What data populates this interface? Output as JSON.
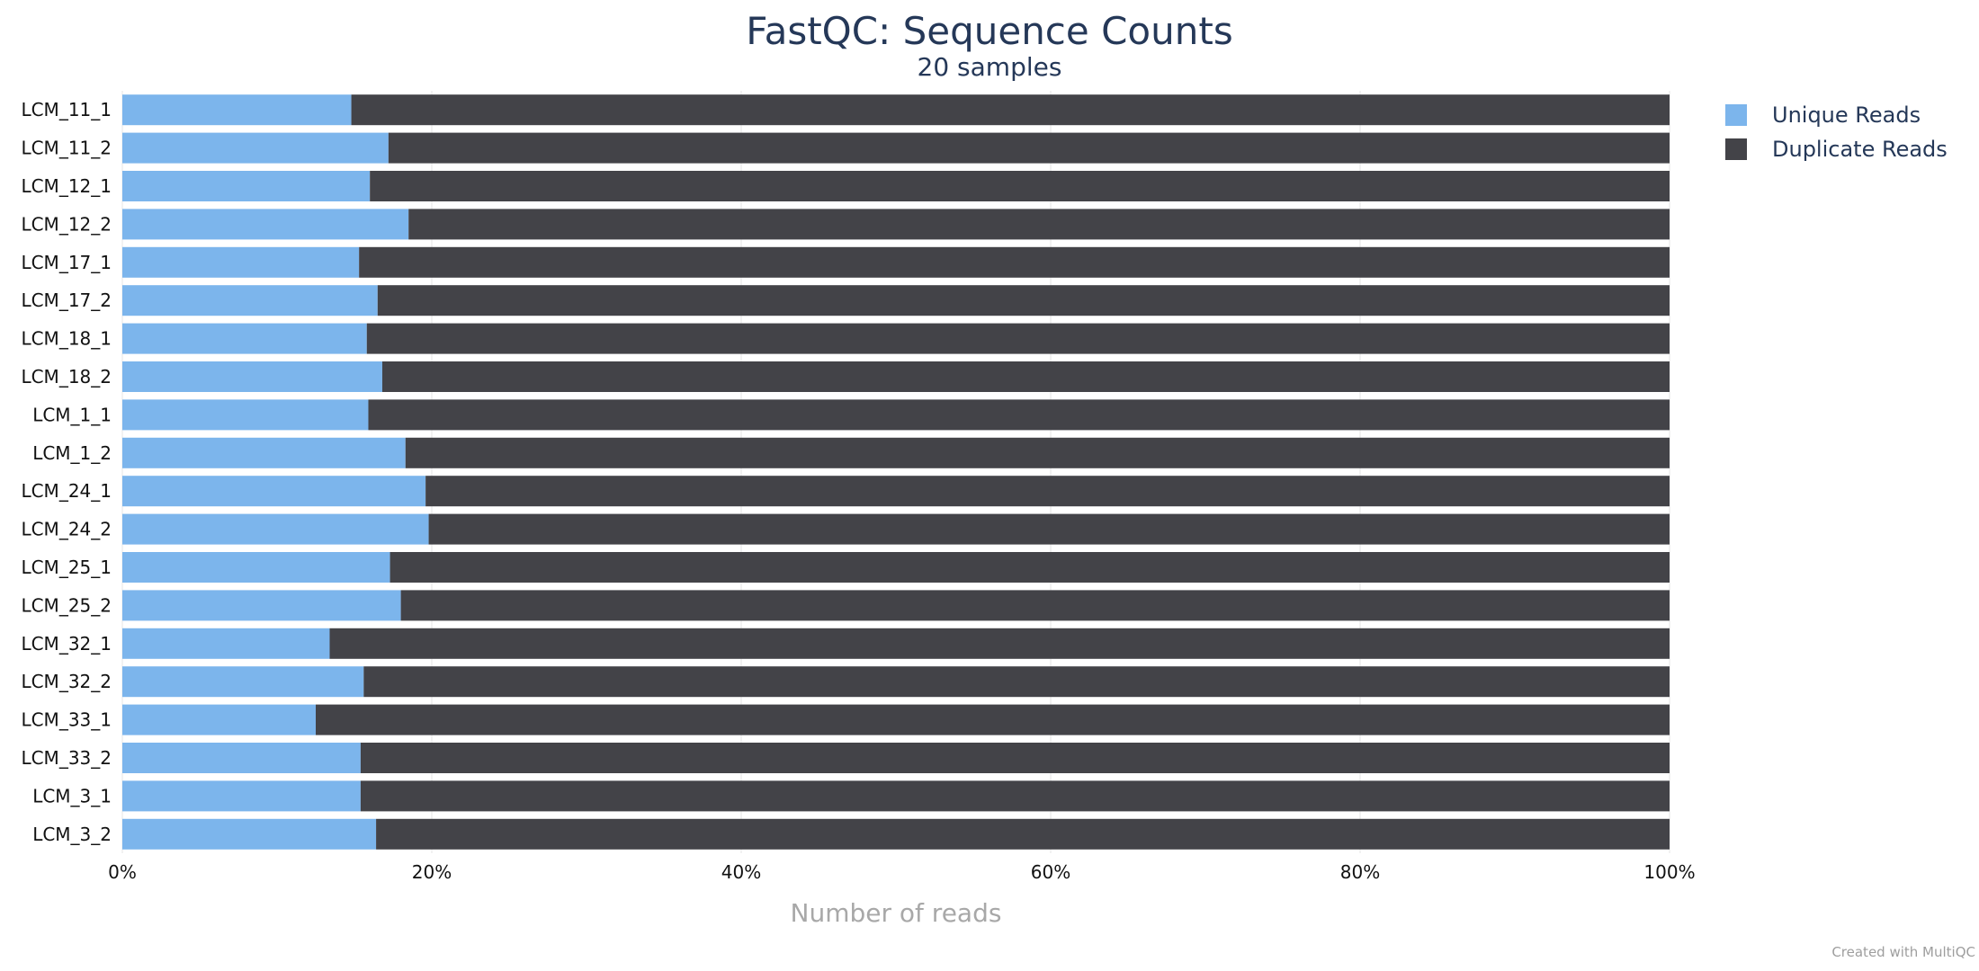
{
  "chart_data": {
    "type": "bar",
    "orientation": "horizontal",
    "stacked": true,
    "title": "FastQC: Sequence Counts",
    "subtitle": "20 samples",
    "xlabel": "Number of reads",
    "ylabel": "",
    "xlim": [
      0,
      100
    ],
    "x_ticks": [
      "0%",
      "20%",
      "40%",
      "60%",
      "80%",
      "100%"
    ],
    "x_tick_values": [
      0,
      20,
      40,
      60,
      80,
      100
    ],
    "grid": true,
    "legend_position": "top-right",
    "categories": [
      "LCM_11_1",
      "LCM_11_2",
      "LCM_12_1",
      "LCM_12_2",
      "LCM_17_1",
      "LCM_17_2",
      "LCM_18_1",
      "LCM_18_2",
      "LCM_1_1",
      "LCM_1_2",
      "LCM_24_1",
      "LCM_24_2",
      "LCM_25_1",
      "LCM_25_2",
      "LCM_32_1",
      "LCM_32_2",
      "LCM_33_1",
      "LCM_33_2",
      "LCM_3_1",
      "LCM_3_2"
    ],
    "series": [
      {
        "name": "Unique Reads",
        "color": "#7cb5ec",
        "values": [
          14.8,
          17.2,
          16.0,
          18.5,
          15.3,
          16.5,
          15.8,
          16.8,
          15.9,
          18.3,
          19.6,
          19.8,
          17.3,
          18.0,
          13.4,
          15.6,
          12.5,
          15.4,
          15.4,
          16.4
        ]
      },
      {
        "name": "Duplicate Reads",
        "color": "#434348",
        "values": [
          85.2,
          82.8,
          84.0,
          81.5,
          84.7,
          83.5,
          84.2,
          83.2,
          84.1,
          81.7,
          80.4,
          80.2,
          82.7,
          82.0,
          86.6,
          84.4,
          87.5,
          84.6,
          84.6,
          83.6
        ]
      }
    ]
  },
  "credit": "Created with MultiQC"
}
